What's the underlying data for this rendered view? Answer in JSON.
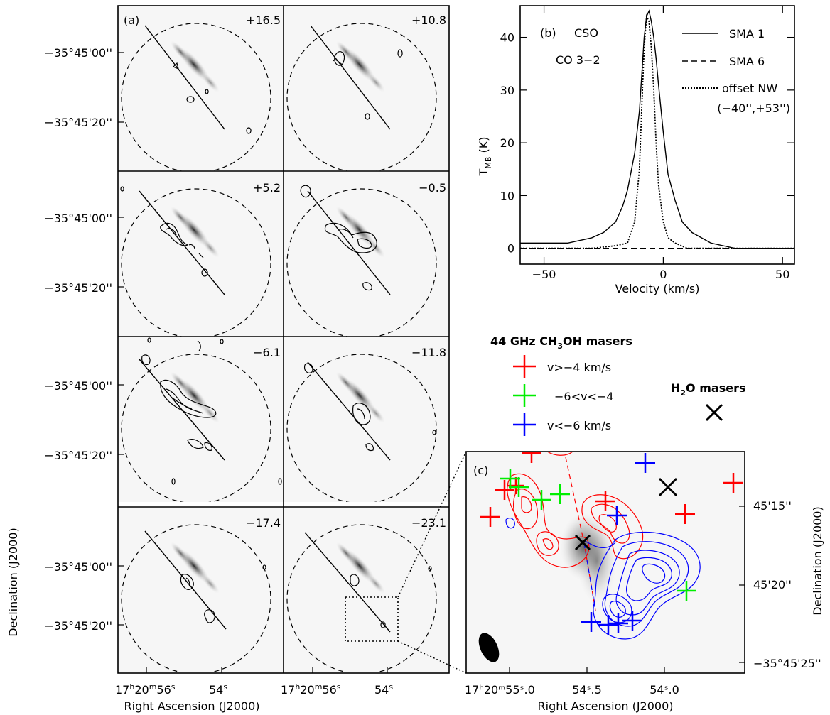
{
  "figure": {
    "panel_a": {
      "letter": "(a)",
      "channel_velocities": [
        "+16.5",
        "+10.8",
        "+5.2",
        "−0.5",
        "−6.1",
        "−11.8",
        "−17.4",
        "−23.1"
      ],
      "dec_ticks": [
        "−35°45'00''",
        "−35°45'20''"
      ],
      "ra_tick_hms": {
        "h": "17",
        "hs": "h",
        "m": "20",
        "ms": "m",
        "s": "56",
        "ss": "s"
      },
      "ra_tick_s": {
        "v": "54",
        "s": "s"
      },
      "ylabel": "Declination (J2000)",
      "xlabel": "Right Ascension (J2000)"
    },
    "panel_b": {
      "letter": "(b)",
      "telescope": "CSO",
      "line": "CO 3−2",
      "legend": [
        "SMA 1",
        "SMA 6",
        "offset NW",
        "(−40'',+53'')"
      ],
      "ylabel_main": "T",
      "ylabel_sub": "MB",
      "ylabel_unit": " (K)",
      "xlabel": "Velocity (km/s)",
      "xticks": [
        "−50",
        "0",
        "50"
      ],
      "yticks": [
        "0",
        "10",
        "20",
        "30",
        "40"
      ]
    },
    "maser_legend": {
      "title_pre": "44 GHz CH",
      "title_sub": "3",
      "title_post": "OH masers",
      "items": [
        "v>−4 km/s",
        "−6<v<−4",
        "v<−6 km/s"
      ],
      "colors": [
        "#ff0000",
        "#00ee00",
        "#0000ff"
      ],
      "h2o_pre": "H",
      "h2o_sub": "2",
      "h2o_post": "O masers"
    },
    "panel_c": {
      "letter": "(c)",
      "dec_ticks": [
        "45'15''",
        "45'20''",
        "−35°45'25''"
      ],
      "ra_tick_first": "17ʰ20ᵐ55ˢ.0",
      "ra_ticks": [
        "54ˢ.5",
        "54ˢ.0"
      ],
      "ylabel": "Declination (J2000)",
      "xlabel": "Right Ascension (J2000)"
    }
  },
  "chart_data": {
    "type": "line",
    "title": "",
    "xlabel": "Velocity (km/s)",
    "ylabel": "T_MB (K)",
    "xlim": [
      -60,
      55
    ],
    "ylim": [
      -3,
      46
    ],
    "series": [
      {
        "name": "SMA 1",
        "style": "solid",
        "x": [
          -60,
          -40,
          -30,
          -25,
          -20,
          -17,
          -15,
          -12,
          -10,
          -9,
          -8,
          -7,
          -6,
          -5,
          -4,
          -3,
          -2,
          0,
          2,
          5,
          8,
          12,
          20,
          30,
          55
        ],
        "y": [
          1,
          1,
          2,
          3,
          5,
          8,
          11,
          18,
          26,
          33,
          40,
          44,
          45,
          43,
          40,
          36,
          31,
          22,
          14,
          9,
          5,
          3,
          1,
          0,
          0
        ]
      },
      {
        "name": "SMA 6",
        "style": "dashed",
        "x": [
          -60,
          -40,
          -20,
          0,
          20,
          55
        ],
        "y": [
          0,
          0,
          0,
          0,
          0,
          0
        ]
      },
      {
        "name": "offset NW (−40'',+53'')",
        "style": "dotted",
        "x": [
          -60,
          -30,
          -20,
          -15,
          -12,
          -10,
          -9,
          -8,
          -7,
          -6,
          -5,
          -4,
          -3,
          -2,
          0,
          2,
          5,
          10,
          55
        ],
        "y": [
          0,
          0,
          0.5,
          1,
          5,
          15,
          27,
          38,
          44,
          43,
          38,
          30,
          20,
          12,
          5,
          2,
          1,
          0,
          0
        ]
      }
    ]
  }
}
